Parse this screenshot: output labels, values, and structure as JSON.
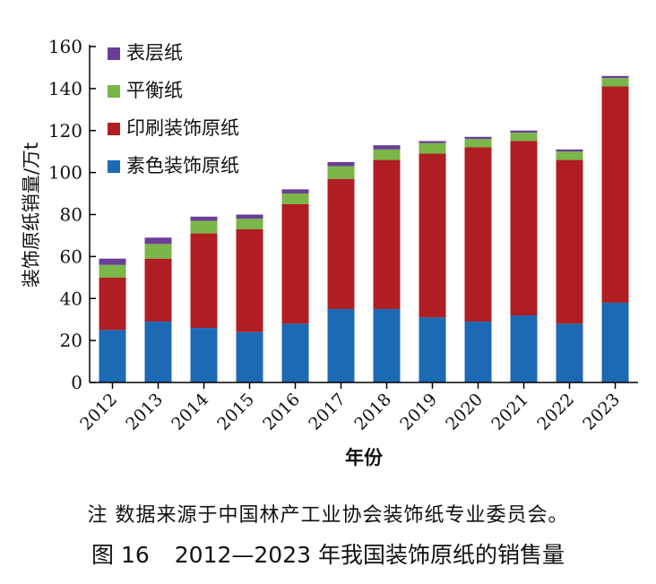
{
  "colors": {
    "素色装饰原纸": "#1c6ab4",
    "印刷装饰原纸": "#b01e23",
    "平衡纸": "#7ab648",
    "表层纸": "#6a3f97",
    "axis": "#000000"
  },
  "chart_data": {
    "type": "bar",
    "stacked": true,
    "categories": [
      "2012",
      "2013",
      "2014",
      "2015",
      "2016",
      "2017",
      "2018",
      "2019",
      "2020",
      "2021",
      "2022",
      "2023"
    ],
    "series": [
      {
        "name": "素色装饰原纸",
        "values": [
          25,
          29,
          26,
          24,
          28,
          35,
          35,
          31,
          29,
          32,
          28,
          38
        ]
      },
      {
        "name": "印刷装饰原纸",
        "values": [
          25,
          30,
          45,
          49,
          57,
          62,
          71,
          78,
          83,
          83,
          78,
          103
        ]
      },
      {
        "name": "平衡纸",
        "values": [
          6,
          7,
          6,
          5,
          5,
          6,
          5,
          5,
          4,
          4,
          4,
          4
        ]
      },
      {
        "name": "表层纸",
        "values": [
          3,
          3,
          2,
          2,
          2,
          2,
          2,
          1,
          1,
          1,
          1,
          1
        ]
      }
    ],
    "xlabel": "年份",
    "ylabel": "装饰原纸销量/万t",
    "ylim": [
      0,
      160
    ],
    "yticks": [
      0,
      20,
      40,
      60,
      80,
      100,
      120,
      140,
      160
    ],
    "legend_position": "top-left",
    "grid": false
  },
  "note": "注 数据来源于中国林产工业协会装饰纸专业委员会。",
  "caption": {
    "figure_no": "图 16",
    "title": "2012—2023 年我国装饰原纸的销售量"
  }
}
